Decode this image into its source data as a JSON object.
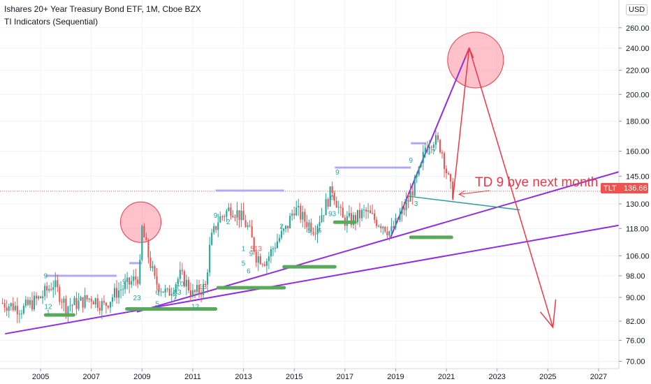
{
  "header": {
    "title": "Ishares 20+ Year Treasury Bond ETF, 1M, Cboe BZX",
    "indicator": "TI Indicators (Sequential)",
    "currency": "USD"
  },
  "price_tag": {
    "symbol": "TLT",
    "value": "136.66"
  },
  "annotation": "TD 9 bye next month",
  "colors": {
    "up": "#26a69a",
    "down": "#ef5350",
    "support": "#5aa95a",
    "resistance": "#b3a8f5",
    "trend": "#8e2de2",
    "arrow": "#f23645",
    "teal": "#2a9d9d",
    "price_tag": "#ef5350"
  },
  "chart_data": {
    "type": "candlestick",
    "title": "Ishares 20+ Year Treasury Bond ETF, 1M, Cboe BZX",
    "scale": "log",
    "ylim": [
      68,
      290
    ],
    "xlim": [
      2003.4,
      2027.8
    ],
    "y_ticks": [
      "70.00",
      "76.00",
      "82.00",
      "90.00",
      "98.00",
      "106.00",
      "118.00",
      "130.00",
      "145.00",
      "160.00",
      "180.00",
      "200.00",
      "220.00",
      "240.00",
      "260.00"
    ],
    "x_ticks": [
      "2005",
      "2007",
      "2009",
      "2011",
      "2013",
      "2015",
      "2017",
      "2019",
      "2021",
      "2023",
      "2025",
      "2027"
    ],
    "last_price": 136.66,
    "anchors": [
      [
        2003.5,
        88
      ],
      [
        2004.3,
        86
      ],
      [
        2005.0,
        90
      ],
      [
        2005.5,
        95
      ],
      [
        2006.0,
        87
      ],
      [
        2006.5,
        88
      ],
      [
        2007.0,
        90
      ],
      [
        2007.5,
        87
      ],
      [
        2008.0,
        92
      ],
      [
        2008.5,
        95
      ],
      [
        2008.9,
        98
      ],
      [
        2009.0,
        118
      ],
      [
        2009.2,
        108
      ],
      [
        2009.5,
        96
      ],
      [
        2010.0,
        91
      ],
      [
        2010.5,
        98
      ],
      [
        2010.7,
        96
      ],
      [
        2011.0,
        91
      ],
      [
        2011.5,
        94
      ],
      [
        2011.7,
        112
      ],
      [
        2012.0,
        122
      ],
      [
        2012.5,
        128
      ],
      [
        2012.8,
        125
      ],
      [
        2013.2,
        118
      ],
      [
        2013.5,
        106
      ],
      [
        2013.9,
        104
      ],
      [
        2014.3,
        112
      ],
      [
        2014.7,
        118
      ],
      [
        2015.0,
        128
      ],
      [
        2015.4,
        122
      ],
      [
        2015.8,
        118
      ],
      [
        2016.2,
        128
      ],
      [
        2016.5,
        138
      ],
      [
        2016.9,
        122
      ],
      [
        2017.3,
        122
      ],
      [
        2017.8,
        126
      ],
      [
        2018.2,
        122
      ],
      [
        2018.5,
        120
      ],
      [
        2018.8,
        116
      ],
      [
        2019.0,
        120
      ],
      [
        2019.5,
        132
      ],
      [
        2019.8,
        142
      ],
      [
        2020.0,
        150
      ],
      [
        2020.2,
        165
      ],
      [
        2020.5,
        168
      ],
      [
        2020.8,
        162
      ],
      [
        2021.0,
        148
      ],
      [
        2021.2,
        136
      ],
      [
        2021.27,
        136.66
      ]
    ],
    "setup_numbers": [
      {
        "x": 2005.2,
        "p": 97,
        "t": "9",
        "c": "up"
      },
      {
        "x": 2005.3,
        "p": 86,
        "t": "12",
        "c": "up"
      },
      {
        "x": 2005.3,
        "p": 84,
        "t": "1",
        "c": "up"
      },
      {
        "x": 2008.3,
        "p": 95,
        "t": "9",
        "c": "up"
      },
      {
        "x": 2008.5,
        "p": 85,
        "t": "1",
        "c": "up"
      },
      {
        "x": 2008.8,
        "p": 89,
        "t": "23",
        "c": "up"
      },
      {
        "x": 2009.6,
        "p": 91,
        "t": "6",
        "c": "up"
      },
      {
        "x": 2009.6,
        "p": 87,
        "t": "5",
        "c": "up"
      },
      {
        "x": 2010.5,
        "p": 94,
        "t": "10",
        "c": "up"
      },
      {
        "x": 2010.4,
        "p": 91,
        "t": "83",
        "c": "up"
      },
      {
        "x": 2010.3,
        "p": 89,
        "t": "7",
        "c": "up"
      },
      {
        "x": 2011.4,
        "p": 93,
        "t": "13",
        "c": "down"
      },
      {
        "x": 2011.1,
        "p": 86,
        "t": "12",
        "c": "up"
      },
      {
        "x": 2011.9,
        "p": 123,
        "t": "9",
        "c": "up"
      },
      {
        "x": 2012.4,
        "p": 120,
        "t": "2",
        "c": "up"
      },
      {
        "x": 2013.0,
        "p": 108,
        "t": "1",
        "c": "up"
      },
      {
        "x": 2013.5,
        "p": 108,
        "t": "513",
        "c": "down"
      },
      {
        "x": 2013.3,
        "p": 106,
        "t": "9",
        "c": "up"
      },
      {
        "x": 2013.0,
        "p": 102,
        "t": "5",
        "c": "up"
      },
      {
        "x": 2013.2,
        "p": 99,
        "t": "6",
        "c": "up"
      },
      {
        "x": 2014.5,
        "p": 118,
        "t": "2",
        "c": "up"
      },
      {
        "x": 2015.6,
        "p": 116,
        "t": "5",
        "c": "up"
      },
      {
        "x": 2016.0,
        "p": 116,
        "t": "6",
        "c": "up"
      },
      {
        "x": 2016.5,
        "p": 132,
        "t": "0",
        "c": "up"
      },
      {
        "x": 2016.5,
        "p": 124,
        "t": "93",
        "c": "up"
      },
      {
        "x": 2016.7,
        "p": 146,
        "t": "9",
        "c": "up"
      },
      {
        "x": 2019.6,
        "p": 153,
        "t": "9",
        "c": "up"
      },
      {
        "x": 2019.4,
        "p": 130,
        "t": "2",
        "c": "up"
      },
      {
        "x": 2019.8,
        "p": 129,
        "t": "3",
        "c": "up"
      },
      {
        "x": 2020.3,
        "p": 158,
        "t": "6",
        "c": "up"
      },
      {
        "x": 2020.5,
        "p": 158,
        "t": "7",
        "c": "up"
      }
    ],
    "resistance_levels": [
      {
        "x0": 2005.2,
        "x1": 2008.0,
        "p": 98
      },
      {
        "x0": 2008.5,
        "x1": 2009.0,
        "p": 103
      },
      {
        "x0": 2011.9,
        "x1": 2014.6,
        "p": 137
      },
      {
        "x0": 2016.6,
        "x1": 2019.6,
        "p": 150
      },
      {
        "x0": 2019.6,
        "x1": 2020.2,
        "p": 165
      }
    ],
    "support_levels": [
      {
        "x0": 2005.2,
        "x1": 2006.3,
        "p": 84
      },
      {
        "x0": 2008.4,
        "x1": 2011.9,
        "p": 86
      },
      {
        "x0": 2012.0,
        "x1": 2014.6,
        "p": 93.5
      },
      {
        "x0": 2014.6,
        "x1": 2016.6,
        "p": 101.5
      },
      {
        "x0": 2016.6,
        "x1": 2017.4,
        "p": 121
      },
      {
        "x0": 2019.6,
        "x1": 2021.2,
        "p": 114
      }
    ],
    "trend_lines": [
      {
        "x0": 2003.6,
        "p0": 78,
        "x1": 2027.8,
        "p1": 119.5
      },
      {
        "x0": 2008.8,
        "p0": 85,
        "x1": 2027.8,
        "p1": 147.5
      },
      {
        "x0": 2018.8,
        "p0": 114,
        "x1": 2021.9,
        "p1": 240
      }
    ],
    "teal_line": {
      "x0": 2019.5,
      "p0": 134,
      "x1": 2023.9,
      "p1": 127
    },
    "arrow_path": [
      [
        2021.25,
        132
      ],
      [
        2021.9,
        240
      ],
      [
        2025.2,
        80
      ]
    ],
    "arrow_small": {
      "x0": 2022.7,
      "p0": 137,
      "x1": 2021.5,
      "p1": 135
    },
    "circles": [
      {
        "x": 2008.95,
        "p": 121,
        "r": 29
      },
      {
        "x": 2022.15,
        "p": 229,
        "r": 40
      }
    ]
  }
}
